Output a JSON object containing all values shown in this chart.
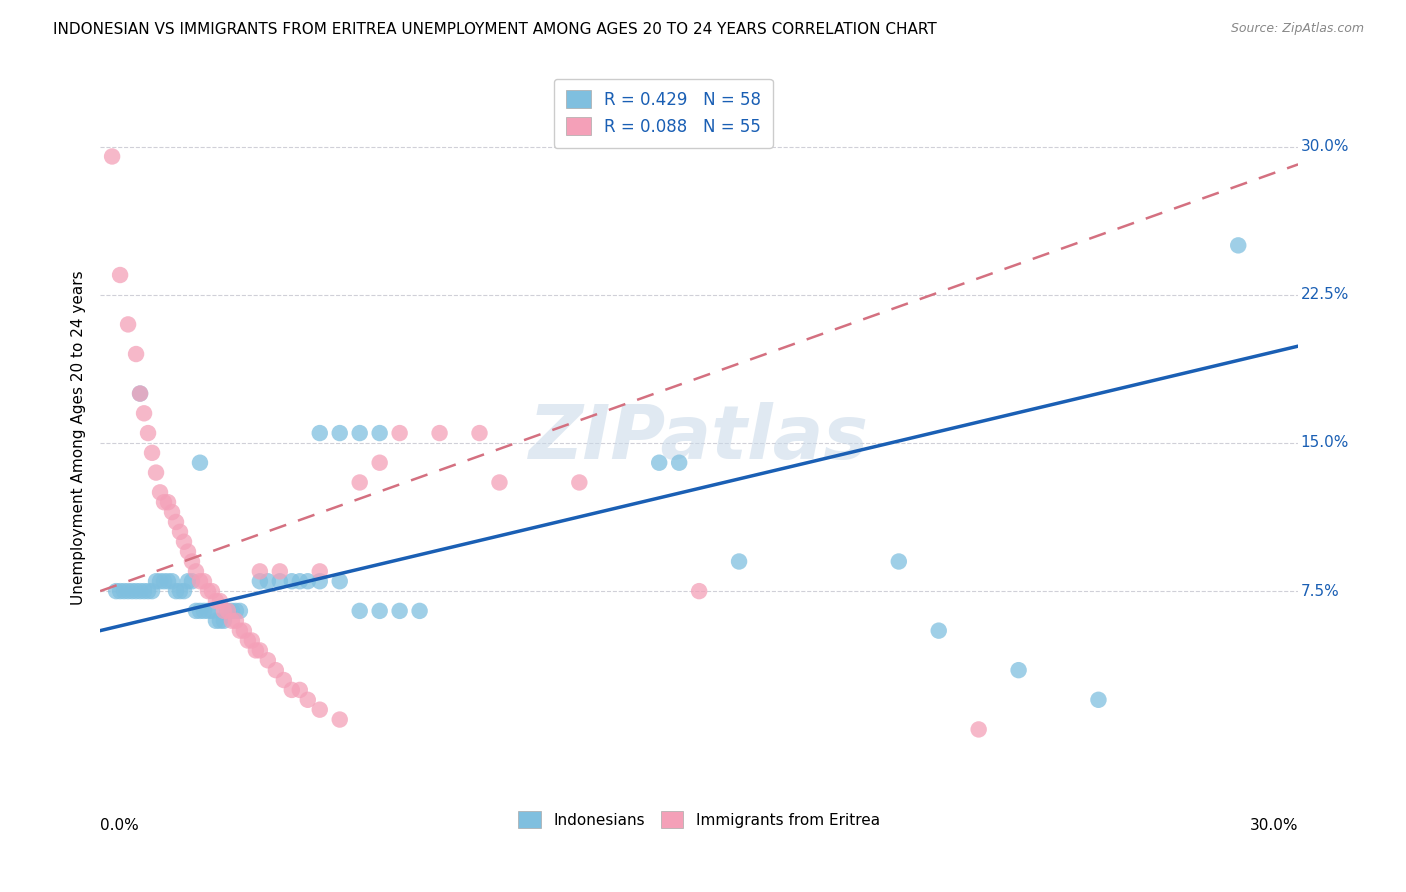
{
  "title": "INDONESIAN VS IMMIGRANTS FROM ERITREA UNEMPLOYMENT AMONG AGES 20 TO 24 YEARS CORRELATION CHART",
  "source": "Source: ZipAtlas.com",
  "ylabel": "Unemployment Among Ages 20 to 24 years",
  "xmin": 0.0,
  "xmax": 0.3,
  "ymin": -0.03,
  "ymax": 0.335,
  "blue_color": "#7fbfdf",
  "pink_color": "#f4a0b8",
  "line_blue": "#1a5fb4",
  "line_pink": "#d47080",
  "indonesian_points": [
    [
      0.004,
      0.075
    ],
    [
      0.005,
      0.075
    ],
    [
      0.006,
      0.075
    ],
    [
      0.007,
      0.075
    ],
    [
      0.008,
      0.075
    ],
    [
      0.009,
      0.075
    ],
    [
      0.01,
      0.075
    ],
    [
      0.011,
      0.075
    ],
    [
      0.012,
      0.075
    ],
    [
      0.013,
      0.075
    ],
    [
      0.014,
      0.08
    ],
    [
      0.015,
      0.08
    ],
    [
      0.016,
      0.08
    ],
    [
      0.017,
      0.08
    ],
    [
      0.018,
      0.08
    ],
    [
      0.019,
      0.075
    ],
    [
      0.02,
      0.075
    ],
    [
      0.021,
      0.075
    ],
    [
      0.022,
      0.08
    ],
    [
      0.023,
      0.08
    ],
    [
      0.024,
      0.065
    ],
    [
      0.025,
      0.065
    ],
    [
      0.026,
      0.065
    ],
    [
      0.027,
      0.065
    ],
    [
      0.028,
      0.065
    ],
    [
      0.029,
      0.06
    ],
    [
      0.03,
      0.06
    ],
    [
      0.031,
      0.06
    ],
    [
      0.032,
      0.065
    ],
    [
      0.033,
      0.065
    ],
    [
      0.034,
      0.065
    ],
    [
      0.035,
      0.065
    ],
    [
      0.04,
      0.08
    ],
    [
      0.042,
      0.08
    ],
    [
      0.045,
      0.08
    ],
    [
      0.048,
      0.08
    ],
    [
      0.05,
      0.08
    ],
    [
      0.052,
      0.08
    ],
    [
      0.055,
      0.08
    ],
    [
      0.06,
      0.08
    ],
    [
      0.065,
      0.065
    ],
    [
      0.07,
      0.065
    ],
    [
      0.075,
      0.065
    ],
    [
      0.08,
      0.065
    ],
    [
      0.01,
      0.175
    ],
    [
      0.025,
      0.14
    ],
    [
      0.055,
      0.155
    ],
    [
      0.06,
      0.155
    ],
    [
      0.065,
      0.155
    ],
    [
      0.07,
      0.155
    ],
    [
      0.14,
      0.14
    ],
    [
      0.145,
      0.14
    ],
    [
      0.16,
      0.09
    ],
    [
      0.2,
      0.09
    ],
    [
      0.21,
      0.055
    ],
    [
      0.23,
      0.035
    ],
    [
      0.25,
      0.02
    ],
    [
      0.285,
      0.25
    ]
  ],
  "eritrea_points": [
    [
      0.003,
      0.295
    ],
    [
      0.005,
      0.235
    ],
    [
      0.007,
      0.21
    ],
    [
      0.009,
      0.195
    ],
    [
      0.01,
      0.175
    ],
    [
      0.011,
      0.165
    ],
    [
      0.012,
      0.155
    ],
    [
      0.013,
      0.145
    ],
    [
      0.014,
      0.135
    ],
    [
      0.015,
      0.125
    ],
    [
      0.016,
      0.12
    ],
    [
      0.017,
      0.12
    ],
    [
      0.018,
      0.115
    ],
    [
      0.019,
      0.11
    ],
    [
      0.02,
      0.105
    ],
    [
      0.021,
      0.1
    ],
    [
      0.022,
      0.095
    ],
    [
      0.023,
      0.09
    ],
    [
      0.024,
      0.085
    ],
    [
      0.025,
      0.08
    ],
    [
      0.026,
      0.08
    ],
    [
      0.027,
      0.075
    ],
    [
      0.028,
      0.075
    ],
    [
      0.029,
      0.07
    ],
    [
      0.03,
      0.07
    ],
    [
      0.031,
      0.065
    ],
    [
      0.032,
      0.065
    ],
    [
      0.033,
      0.06
    ],
    [
      0.034,
      0.06
    ],
    [
      0.035,
      0.055
    ],
    [
      0.036,
      0.055
    ],
    [
      0.037,
      0.05
    ],
    [
      0.038,
      0.05
    ],
    [
      0.039,
      0.045
    ],
    [
      0.04,
      0.045
    ],
    [
      0.042,
      0.04
    ],
    [
      0.044,
      0.035
    ],
    [
      0.046,
      0.03
    ],
    [
      0.048,
      0.025
    ],
    [
      0.05,
      0.025
    ],
    [
      0.052,
      0.02
    ],
    [
      0.055,
      0.015
    ],
    [
      0.06,
      0.01
    ],
    [
      0.04,
      0.085
    ],
    [
      0.045,
      0.085
    ],
    [
      0.055,
      0.085
    ],
    [
      0.065,
      0.13
    ],
    [
      0.07,
      0.14
    ],
    [
      0.075,
      0.155
    ],
    [
      0.085,
      0.155
    ],
    [
      0.095,
      0.155
    ],
    [
      0.1,
      0.13
    ],
    [
      0.12,
      0.13
    ],
    [
      0.15,
      0.075
    ],
    [
      0.22,
      0.005
    ]
  ],
  "indonesian_regression": {
    "slope": 0.48,
    "intercept": 0.055
  },
  "eritrea_regression": {
    "slope": 0.72,
    "intercept": 0.075
  },
  "watermark": "ZIPatlas",
  "watermark_color": "#c8d8e8"
}
